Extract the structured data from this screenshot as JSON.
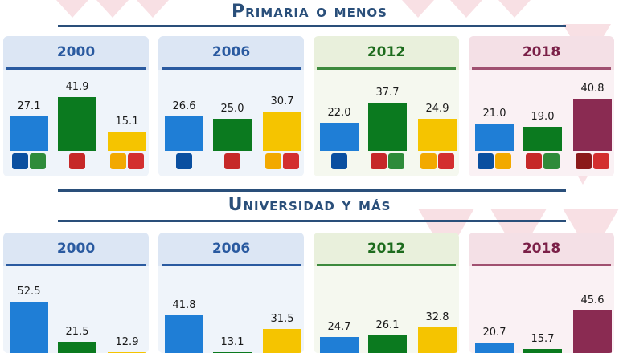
{
  "sections": [
    {
      "title": "Primaria o menos",
      "panels": [
        {
          "year": "2000",
          "theme": "blue",
          "values": [
            "27.1",
            "41.9",
            "15.1"
          ],
          "logos": [
            [
              {
                "code": "PAN",
                "color": "#0a4fa0"
              },
              {
                "code": "PVEM",
                "color": "#2e8b3a"
              }
            ],
            [
              {
                "code": "PRI",
                "color": "#c62828"
              }
            ],
            [
              {
                "code": "PRD",
                "color": "#f2a900"
              },
              {
                "code": "PT",
                "color": "#d32f2f"
              }
            ]
          ]
        },
        {
          "year": "2006",
          "theme": "blue",
          "values": [
            "26.6",
            "25.0",
            "30.7"
          ],
          "logos": [
            [
              {
                "code": "PAN",
                "color": "#0a4fa0"
              }
            ],
            [
              {
                "code": "PRI",
                "color": "#c62828"
              }
            ],
            [
              {
                "code": "PRD",
                "color": "#f2a900"
              },
              {
                "code": "PT",
                "color": "#d32f2f"
              }
            ]
          ]
        },
        {
          "year": "2012",
          "theme": "green",
          "values": [
            "22.0",
            "37.7",
            "24.9"
          ],
          "logos": [
            [
              {
                "code": "PAN",
                "color": "#0a4fa0"
              }
            ],
            [
              {
                "code": "PRI",
                "color": "#c62828"
              },
              {
                "code": "PVEM",
                "color": "#2e8b3a"
              }
            ],
            [
              {
                "code": "PRD",
                "color": "#f2a900"
              },
              {
                "code": "PT",
                "color": "#d32f2f"
              }
            ]
          ]
        },
        {
          "year": "2018",
          "theme": "maroon",
          "values": [
            "21.0",
            "19.0",
            "40.8"
          ],
          "logos": [
            [
              {
                "code": "PAN",
                "color": "#0a4fa0"
              },
              {
                "code": "PRD",
                "color": "#f2a900"
              }
            ],
            [
              {
                "code": "PRI",
                "color": "#c62828"
              },
              {
                "code": "PVEM",
                "color": "#2e8b3a"
              }
            ],
            [
              {
                "code": "MOR",
                "color": "#8b1a1a"
              },
              {
                "code": "PT",
                "color": "#d32f2f"
              }
            ]
          ]
        }
      ]
    },
    {
      "title": "Universidad y más",
      "panels": [
        {
          "year": "2000",
          "theme": "blue",
          "values": [
            "52.5",
            "21.5",
            "12.9"
          ]
        },
        {
          "year": "2006",
          "theme": "blue",
          "values": [
            "41.8",
            "13.1",
            "31.5"
          ]
        },
        {
          "year": "2012",
          "theme": "green",
          "values": [
            "24.7",
            "26.1",
            "32.8"
          ]
        },
        {
          "year": "2018",
          "theme": "maroon",
          "values": [
            "20.7",
            "15.7",
            "45.6"
          ]
        }
      ]
    }
  ],
  "colors": {
    "bar_blue": "#1f7ed6",
    "bar_green": "#0b7a1f",
    "bar_yellow": "#f5c400",
    "bar_maroon": "#8a2b52",
    "title": "#2a4f7a",
    "theme": {
      "blue": {
        "bg": "#dce6f4",
        "head": "#2a5aa0",
        "rule": "#2a5aa0"
      },
      "green": {
        "bg": "#e9f0dc",
        "head": "#1d6b1d",
        "rule": "#3d8a3d"
      },
      "maroon": {
        "bg": "#f4e0e6",
        "head": "#7b2048",
        "rule": "#a05070"
      }
    }
  },
  "chart_data": [
    {
      "type": "bar",
      "title": "Primaria o menos",
      "categories": [
        "2000",
        "2006",
        "2012",
        "2018"
      ],
      "series": [
        {
          "values": [
            27.1,
            26.6,
            22.0,
            21.0
          ]
        },
        {
          "values": [
            41.9,
            25.0,
            37.7,
            19.0
          ]
        },
        {
          "values": [
            15.1,
            30.7,
            24.9,
            40.8
          ]
        }
      ]
    },
    {
      "type": "bar",
      "title": "Universidad y más",
      "categories": [
        "2000",
        "2006",
        "2012",
        "2018"
      ],
      "series": [
        {
          "values": [
            52.5,
            41.8,
            24.7,
            20.7
          ]
        },
        {
          "values": [
            21.5,
            13.1,
            26.1,
            15.7
          ]
        },
        {
          "values": [
            12.9,
            31.5,
            32.8,
            45.6
          ]
        }
      ]
    }
  ]
}
